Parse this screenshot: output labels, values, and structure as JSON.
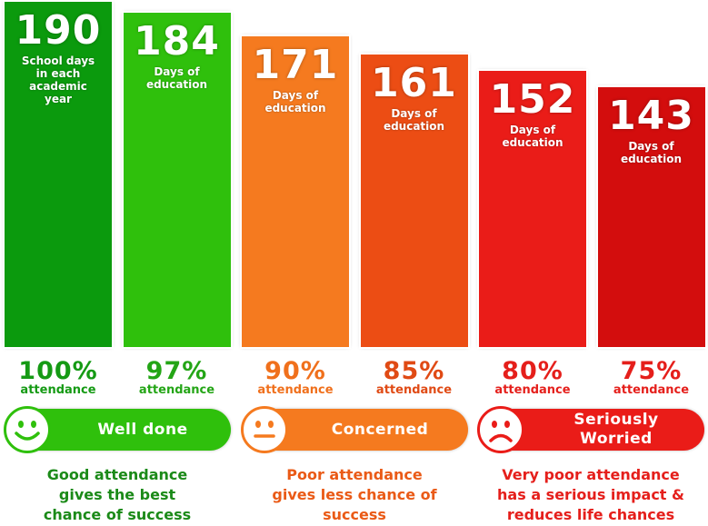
{
  "chart_data": {
    "type": "bar",
    "categories": [
      "100%",
      "97%",
      "90%",
      "85%",
      "80%",
      "75%"
    ],
    "values": [
      190,
      184,
      171,
      161,
      152,
      143
    ],
    "value_labels": [
      "190",
      "184",
      "171",
      "161",
      "152",
      "143"
    ],
    "bar_captions": [
      "School days\nin each\nacademic\nyear",
      "Days of\neducation",
      "Days of\neducation",
      "Days of\neducation",
      "Days of\neducation",
      "Days of\neducation"
    ],
    "category_caption": "attendance",
    "bar_colors": [
      "#0b9a0d",
      "#2fc00c",
      "#f57a1f",
      "#ec4d14",
      "#ea1c18",
      "#d30d0d"
    ],
    "pct_colors": [
      "#159a14",
      "#24a516",
      "#f0701c",
      "#e04a14",
      "#e51f1b",
      "#e51f1b"
    ],
    "ylim": [
      0,
      190
    ],
    "grid": false,
    "legend": "none"
  },
  "groups": [
    {
      "status": "Well done",
      "mood": "happy",
      "message": "Good attendance\ngives the best\nchance of success",
      "color": "#2fc00c",
      "text_color": "#1b8a18"
    },
    {
      "status": "Concerned",
      "mood": "neutral",
      "message": "Poor attendance\ngives less chance of\nsuccess",
      "color": "#f57a1f",
      "text_color": "#ea5a16"
    },
    {
      "status": "Seriously\nWorried",
      "mood": "sad",
      "message": "Very poor attendance\nhas a serious impact &\nreduces life chances",
      "color": "#ea1c18",
      "text_color": "#e51f1b"
    }
  ],
  "icons": {
    "happy": "smiley-face-icon",
    "neutral": "neutral-face-icon",
    "sad": "sad-face-icon"
  }
}
